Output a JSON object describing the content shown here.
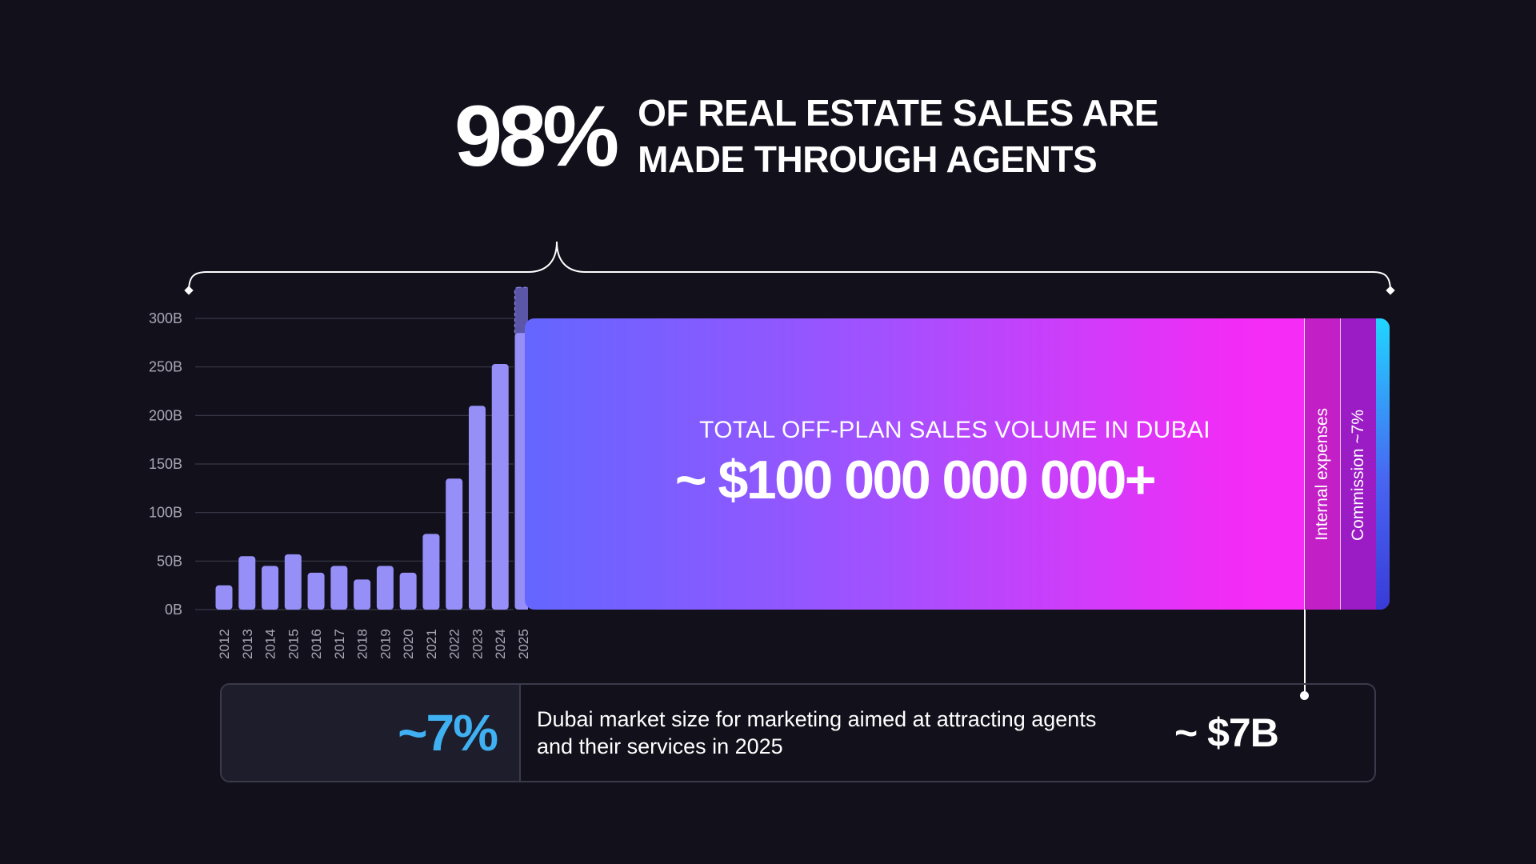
{
  "headline": {
    "percent": "98%",
    "line1": "OF REAL ESTATE SALES ARE",
    "line2": "MADE THROUGH AGENTS"
  },
  "chart_data": {
    "type": "bar",
    "categories": [
      "2012",
      "2013",
      "2014",
      "2015",
      "2016",
      "2017",
      "2018",
      "2019",
      "2020",
      "2021",
      "2022",
      "2023",
      "2024",
      "2025"
    ],
    "values": [
      25,
      55,
      45,
      57,
      38,
      45,
      31,
      45,
      38,
      78,
      135,
      210,
      253,
      285
    ],
    "projected_extra": [
      0,
      0,
      0,
      0,
      0,
      0,
      0,
      0,
      0,
      0,
      0,
      0,
      0,
      47
    ],
    "yticks": [
      "0B",
      "50B",
      "100B",
      "150B",
      "200B",
      "250B",
      "300B"
    ],
    "ylim": [
      0,
      300
    ],
    "grid": true,
    "colors": {
      "bar": "#968ff8",
      "projected": "#5c56a8"
    }
  },
  "volume": {
    "label": "TOTAL OFF-PLAN SALES VOLUME IN DUBAI",
    "value": "~ $100 000 000 000+",
    "internal_label": "Internal expenses",
    "commission_label": "Commission ~7%"
  },
  "market": {
    "percent": "~7%",
    "desc_line1": "Dubai market size for marketing aimed at attracting agents",
    "desc_line2": "and their services in 2025",
    "amount": "~ $7B"
  }
}
